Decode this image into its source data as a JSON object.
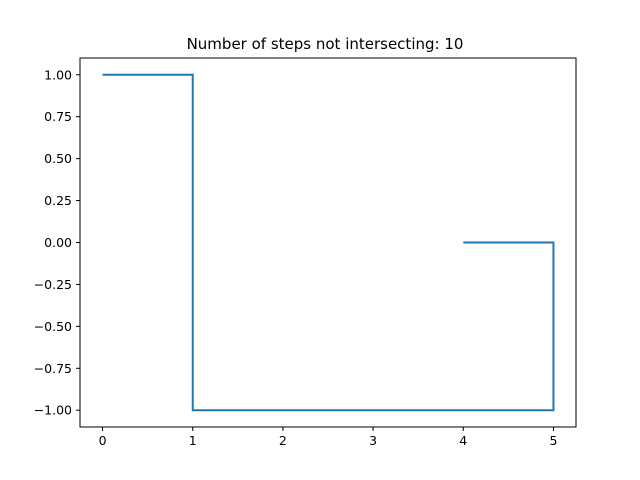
{
  "chart_data": {
    "type": "line",
    "title": "Number of steps not intersecting: 10",
    "xlabel": "",
    "ylabel": "",
    "xlim": [
      -0.25,
      5.25
    ],
    "ylim": [
      -1.1,
      1.1
    ],
    "x_ticks": [
      0,
      1,
      2,
      3,
      4,
      5
    ],
    "x_tick_labels": [
      "0",
      "1",
      "2",
      "3",
      "4",
      "5"
    ],
    "y_ticks": [
      1.0,
      0.75,
      0.5,
      0.25,
      0.0,
      -0.25,
      -0.5,
      -0.75,
      -1.0
    ],
    "y_tick_labels": [
      "1.00",
      "0.75",
      "0.50",
      "0.25",
      "0.00",
      "−0.25",
      "−0.50",
      "−0.75",
      "−1.00"
    ],
    "grid": false,
    "series": [
      {
        "color": "#1f77b4",
        "x": [
          0,
          1,
          1,
          2,
          3,
          4,
          5,
          5,
          4
        ],
        "y": [
          1,
          1,
          -1,
          -1,
          -1,
          -1,
          -1,
          0,
          0
        ]
      }
    ]
  }
}
